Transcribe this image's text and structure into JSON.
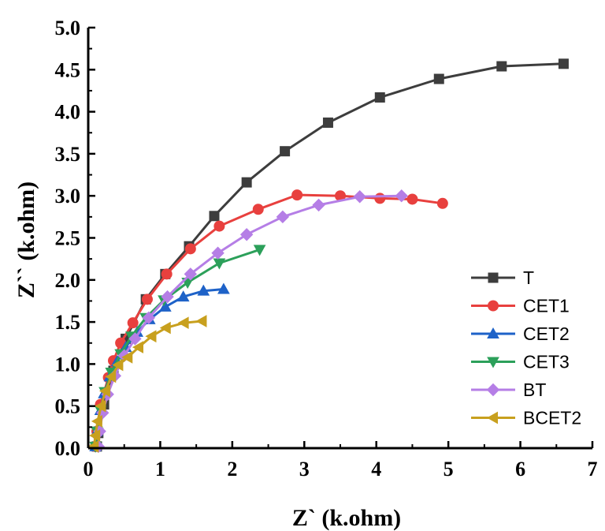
{
  "chart_data": {
    "type": "scatter",
    "title": "",
    "xlabel": "Z` (k.ohm)",
    "ylabel": "Z`` (k.ohm)",
    "xlim": [
      0,
      7
    ],
    "ylim": [
      0,
      5
    ],
    "xticks": [
      "0",
      "1",
      "2",
      "3",
      "4",
      "5",
      "6",
      "7"
    ],
    "yticks": [
      "0.0",
      "0.5",
      "1.0",
      "1.5",
      "2.0",
      "2.5",
      "3.0",
      "3.5",
      "4.0",
      "4.5",
      "5.0"
    ],
    "grid": false,
    "legend_position": "right",
    "series": [
      {
        "name": "T",
        "color": "#3d3d3d",
        "marker": "square",
        "points": [
          [
            0.12,
            0.02
          ],
          [
            0.14,
            0.18
          ],
          [
            0.22,
            0.52
          ],
          [
            0.35,
            0.92
          ],
          [
            0.52,
            1.3
          ],
          [
            0.8,
            1.77
          ],
          [
            1.07,
            2.07
          ],
          [
            1.4,
            2.4
          ],
          [
            1.75,
            2.76
          ],
          [
            2.2,
            3.16
          ],
          [
            2.73,
            3.53
          ],
          [
            3.33,
            3.87
          ],
          [
            4.05,
            4.17
          ],
          [
            4.87,
            4.39
          ],
          [
            5.74,
            4.54
          ],
          [
            6.6,
            4.57
          ]
        ]
      },
      {
        "name": "CET1",
        "color": "#e8403e",
        "marker": "circle",
        "points": [
          [
            0.1,
            0.02
          ],
          [
            0.12,
            0.2
          ],
          [
            0.17,
            0.52
          ],
          [
            0.28,
            0.84
          ],
          [
            0.35,
            1.04
          ],
          [
            0.45,
            1.25
          ],
          [
            0.62,
            1.49
          ],
          [
            0.82,
            1.77
          ],
          [
            1.09,
            2.07
          ],
          [
            1.42,
            2.37
          ],
          [
            1.82,
            2.64
          ],
          [
            2.36,
            2.84
          ],
          [
            2.9,
            3.01
          ],
          [
            3.5,
            3.0
          ],
          [
            4.05,
            2.97
          ],
          [
            4.5,
            2.96
          ],
          [
            4.92,
            2.91
          ]
        ]
      },
      {
        "name": "CET2",
        "color": "#1e62c8",
        "marker": "triangle-up",
        "points": [
          [
            0.1,
            0.02
          ],
          [
            0.12,
            0.2
          ],
          [
            0.17,
            0.45
          ],
          [
            0.22,
            0.65
          ],
          [
            0.3,
            0.85
          ],
          [
            0.4,
            1.03
          ],
          [
            0.52,
            1.2
          ],
          [
            0.68,
            1.38
          ],
          [
            0.85,
            1.53
          ],
          [
            1.07,
            1.68
          ],
          [
            1.32,
            1.8
          ],
          [
            1.6,
            1.87
          ],
          [
            1.88,
            1.89
          ]
        ]
      },
      {
        "name": "CET3",
        "color": "#2ca05a",
        "marker": "triangle-down",
        "points": [
          [
            0.1,
            0.02
          ],
          [
            0.12,
            0.2
          ],
          [
            0.17,
            0.45
          ],
          [
            0.23,
            0.67
          ],
          [
            0.32,
            0.9
          ],
          [
            0.45,
            1.12
          ],
          [
            0.6,
            1.33
          ],
          [
            0.8,
            1.55
          ],
          [
            1.05,
            1.76
          ],
          [
            1.38,
            1.97
          ],
          [
            1.82,
            2.2
          ],
          [
            2.38,
            2.36
          ]
        ]
      },
      {
        "name": "BT",
        "color": "#b57ee6",
        "marker": "diamond",
        "points": [
          [
            0.14,
            0.02
          ],
          [
            0.16,
            0.2
          ],
          [
            0.2,
            0.42
          ],
          [
            0.27,
            0.64
          ],
          [
            0.37,
            0.86
          ],
          [
            0.5,
            1.1
          ],
          [
            0.65,
            1.3
          ],
          [
            0.84,
            1.55
          ],
          [
            1.1,
            1.8
          ],
          [
            1.42,
            2.07
          ],
          [
            1.8,
            2.32
          ],
          [
            2.2,
            2.54
          ],
          [
            2.7,
            2.75
          ],
          [
            3.2,
            2.89
          ],
          [
            3.77,
            2.99
          ],
          [
            4.35,
            3.0
          ]
        ]
      },
      {
        "name": "BCET2",
        "color": "#c8a01e",
        "marker": "triangle-left",
        "points": [
          [
            0.08,
            0.02
          ],
          [
            0.1,
            0.15
          ],
          [
            0.13,
            0.32
          ],
          [
            0.18,
            0.5
          ],
          [
            0.24,
            0.68
          ],
          [
            0.32,
            0.85
          ],
          [
            0.42,
            0.99
          ],
          [
            0.55,
            1.08
          ],
          [
            0.7,
            1.2
          ],
          [
            0.88,
            1.33
          ],
          [
            1.08,
            1.43
          ],
          [
            1.33,
            1.49
          ],
          [
            1.58,
            1.51
          ]
        ]
      }
    ]
  }
}
